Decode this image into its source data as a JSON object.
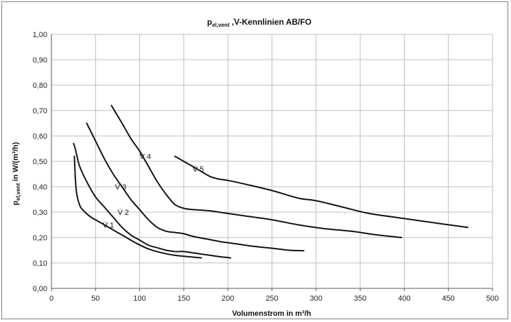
{
  "chart_data": {
    "type": "line",
    "title": "pₑₗ,vent , V̇-Kennlinien AB/FO",
    "title_main": "p",
    "title_sub": "el,vent",
    "title_rest": " ,̇V-Kennlinien AB/FO",
    "xlabel": "Volumenstrom  in m³/h",
    "ylabel_main": "p",
    "ylabel_sub": "el,vent",
    "ylabel_rest": "  in W/(m³/h)",
    "xlim": [
      0,
      500
    ],
    "ylim": [
      0,
      1.0
    ],
    "x_ticks": [
      "0",
      "50",
      "100",
      "150",
      "200",
      "250",
      "300",
      "350",
      "400",
      "450",
      "500"
    ],
    "y_ticks": [
      "0,00",
      "0,10",
      "0,20",
      "0,30",
      "0,40",
      "0,50",
      "0,60",
      "0,70",
      "0,80",
      "0,90",
      "1,00"
    ],
    "grid": "vertical and horizontal",
    "line_color": "#111111",
    "series": [
      {
        "name": "V̇ 1",
        "label_at": [
          58,
          0.25
        ],
        "x": [
          26,
          27,
          28,
          30,
          33,
          38,
          45,
          55,
          65,
          75,
          85,
          95,
          110,
          125,
          140,
          155,
          170
        ],
        "y": [
          0.52,
          0.44,
          0.39,
          0.35,
          0.32,
          0.3,
          0.28,
          0.26,
          0.24,
          0.22,
          0.2,
          0.18,
          0.155,
          0.14,
          0.13,
          0.125,
          0.12
        ]
      },
      {
        "name": "V̇ 2",
        "label_at": [
          75,
          0.3
        ],
        "x": [
          25,
          27,
          29,
          32,
          40,
          50,
          60,
          70,
          80,
          90,
          100,
          110,
          120,
          130,
          140,
          150,
          160,
          170,
          180,
          190,
          203
        ],
        "y": [
          0.57,
          0.55,
          0.52,
          0.48,
          0.42,
          0.36,
          0.32,
          0.28,
          0.24,
          0.21,
          0.19,
          0.17,
          0.16,
          0.15,
          0.145,
          0.145,
          0.14,
          0.135,
          0.13,
          0.125,
          0.12
        ]
      },
      {
        "name": "V̇ 3",
        "label_at": [
          72,
          0.4
        ],
        "x": [
          40,
          50,
          60,
          70,
          80,
          90,
          100,
          110,
          120,
          130,
          140,
          150,
          160,
          175,
          190,
          210,
          230,
          250,
          270,
          286
        ],
        "y": [
          0.65,
          0.58,
          0.51,
          0.45,
          0.4,
          0.35,
          0.31,
          0.27,
          0.24,
          0.225,
          0.22,
          0.215,
          0.205,
          0.195,
          0.185,
          0.175,
          0.165,
          0.158,
          0.15,
          0.148
        ]
      },
      {
        "name": "V̇ 4",
        "label_at": [
          100,
          0.52
        ],
        "x": [
          68,
          80,
          90,
          100,
          110,
          120,
          130,
          140,
          150,
          160,
          180,
          200,
          220,
          250,
          280,
          310,
          340,
          370,
          397
        ],
        "y": [
          0.72,
          0.65,
          0.59,
          0.54,
          0.48,
          0.42,
          0.37,
          0.33,
          0.315,
          0.31,
          0.305,
          0.295,
          0.285,
          0.27,
          0.25,
          0.235,
          0.225,
          0.21,
          0.2
        ]
      },
      {
        "name": "V̇ 5",
        "label_at": [
          160,
          0.47
        ],
        "x": [
          140,
          150,
          160,
          170,
          180,
          190,
          200,
          220,
          250,
          280,
          300,
          330,
          360,
          400,
          440,
          472
        ],
        "y": [
          0.52,
          0.5,
          0.48,
          0.46,
          0.44,
          0.43,
          0.425,
          0.41,
          0.385,
          0.355,
          0.345,
          0.32,
          0.295,
          0.275,
          0.255,
          0.24
        ]
      }
    ]
  }
}
